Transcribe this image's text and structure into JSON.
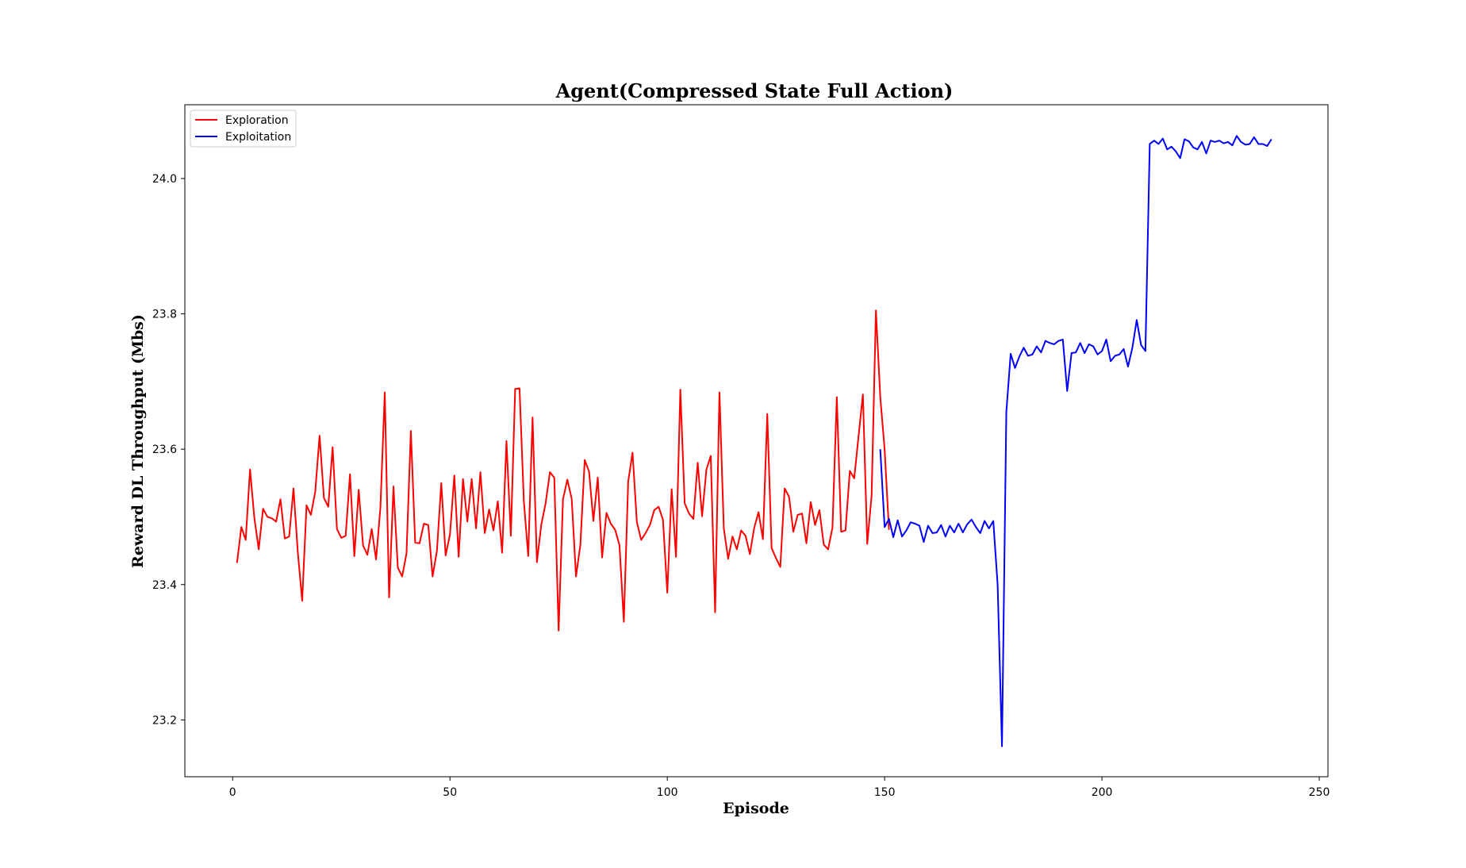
{
  "chart_data": {
    "type": "line",
    "title": "Agent(Compressed State Full Action)",
    "xlabel": "Episode",
    "ylabel": "Reward DL Throughput (Mbs)",
    "xlim": [
      -11,
      252
    ],
    "ylim": [
      23.116,
      24.109
    ],
    "xticks": [
      0,
      50,
      100,
      150,
      200,
      250
    ],
    "yticks": [
      23.2,
      23.4,
      23.6,
      23.8,
      24.0
    ],
    "xtick_labels": [
      "0",
      "50",
      "100",
      "150",
      "200",
      "250"
    ],
    "ytick_labels": [
      "23.2",
      "23.4",
      "23.6",
      "23.8",
      "24.0"
    ],
    "grid": false,
    "legend_position": "top-left",
    "series": [
      {
        "name": "Exploration",
        "color": "#ff0000",
        "x_start": 1,
        "values": [
          23.432,
          23.485,
          23.466,
          23.57,
          23.498,
          23.452,
          23.512,
          23.5,
          23.498,
          23.493,
          23.526,
          23.468,
          23.471,
          23.542,
          23.447,
          23.376,
          23.517,
          23.503,
          23.537,
          23.62,
          23.528,
          23.515,
          23.603,
          23.482,
          23.469,
          23.472,
          23.563,
          23.442,
          23.54,
          23.458,
          23.444,
          23.482,
          23.437,
          23.514,
          23.684,
          23.381,
          23.545,
          23.425,
          23.412,
          23.446,
          23.627,
          23.462,
          23.461,
          23.49,
          23.488,
          23.412,
          23.45,
          23.55,
          23.443,
          23.474,
          23.561,
          23.441,
          23.556,
          23.493,
          23.556,
          23.483,
          23.566,
          23.476,
          23.511,
          23.48,
          23.523,
          23.447,
          23.612,
          23.472,
          23.689,
          23.69,
          23.523,
          23.442,
          23.647,
          23.433,
          23.488,
          23.52,
          23.566,
          23.558,
          23.332,
          23.526,
          23.555,
          23.527,
          23.412,
          23.459,
          23.584,
          23.567,
          23.494,
          23.558,
          23.44,
          23.506,
          23.49,
          23.481,
          23.458,
          23.345,
          23.552,
          23.595,
          23.492,
          23.466,
          23.476,
          23.488,
          23.51,
          23.515,
          23.496,
          23.388,
          23.541,
          23.441,
          23.688,
          23.52,
          23.505,
          23.497,
          23.58,
          23.501,
          23.57,
          23.59,
          23.359,
          23.684,
          23.483,
          23.438,
          23.471,
          23.452,
          23.48,
          23.472,
          23.445,
          23.484,
          23.507,
          23.467,
          23.652,
          23.454,
          23.439,
          23.426,
          23.542,
          23.53,
          23.478,
          23.503,
          23.505,
          23.461,
          23.522,
          23.488,
          23.51,
          23.459,
          23.452,
          23.484,
          23.677,
          23.478,
          23.48,
          23.568,
          23.557,
          23.619,
          23.681,
          23.46,
          23.531,
          23.805,
          23.677,
          23.6,
          23.481
        ]
      },
      {
        "name": "Exploitation",
        "color": "#0000ff",
        "x_start": 149,
        "values": [
          23.6,
          23.485,
          23.497,
          23.47,
          23.495,
          23.471,
          23.48,
          23.492,
          23.49,
          23.487,
          23.463,
          23.487,
          23.476,
          23.477,
          23.488,
          23.471,
          23.487,
          23.477,
          23.49,
          23.477,
          23.489,
          23.496,
          23.485,
          23.476,
          23.494,
          23.483,
          23.494,
          23.4,
          23.161,
          23.655,
          23.741,
          23.72,
          23.737,
          23.75,
          23.738,
          23.74,
          23.752,
          23.743,
          23.76,
          23.757,
          23.755,
          23.76,
          23.762,
          23.686,
          23.742,
          23.743,
          23.757,
          23.742,
          23.755,
          23.752,
          23.74,
          23.745,
          23.762,
          23.73,
          23.738,
          23.74,
          23.748,
          23.722,
          23.75,
          23.791,
          23.754,
          23.745,
          24.051,
          24.056,
          24.051,
          24.059,
          24.043,
          24.047,
          24.04,
          24.03,
          24.058,
          24.055,
          24.046,
          24.043,
          24.054,
          24.037,
          24.056,
          24.054,
          24.056,
          24.052,
          24.054,
          24.049,
          24.063,
          24.054,
          24.05,
          24.051,
          24.061,
          24.051,
          24.051,
          24.048,
          24.058
        ]
      }
    ]
  }
}
